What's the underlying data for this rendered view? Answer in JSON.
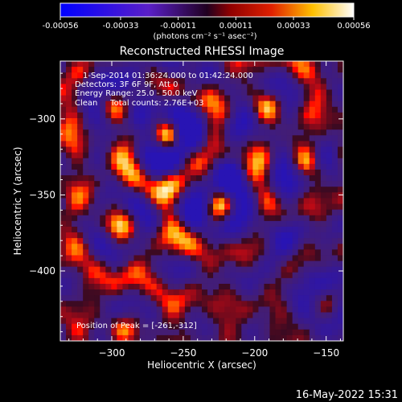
{
  "colorbar": {
    "tick_labels": [
      "-0.00056",
      "-0.00033",
      "-0.00011",
      "0.00011",
      "0.00033",
      "0.00056"
    ],
    "tick_values": [
      -0.00056,
      -0.00033,
      -0.00011,
      0.00011,
      0.00033,
      0.00056
    ],
    "unit_label": "(photons cm⁻² s⁻¹ asec⁻²)",
    "range": [
      -0.00056,
      0.00056
    ]
  },
  "annotations": {
    "time_range": "1-Sep-2014 01:36:24.000 to 01:42:24.000",
    "detectors": "Detectors: 3F 6F 9F, Att 0",
    "energy_range": "Energy Range: 25.0 - 50.0 keV",
    "algorithm": "Clean     Total counts: 2.76E+03",
    "peak_position": "Position of Peak = [-261,-312]"
  },
  "footer": {
    "timestamp": "16-May-2022 15:31"
  },
  "chart_data": {
    "type": "heatmap",
    "title": "Reconstructed RHESSI Image",
    "xlabel": "Heliocentric X (arcsec)",
    "ylabel": "Heliocentric Y (arcsec)",
    "xlim": [
      -336,
      -138
    ],
    "ylim": [
      -446,
      -262
    ],
    "xticks": [
      -300,
      -250,
      -200,
      -150
    ],
    "yticks": [
      -300,
      -350,
      -400
    ],
    "xtick_labels": [
      "−300",
      "−250",
      "−200",
      "−150"
    ],
    "ytick_labels": [
      "−300",
      "−350",
      "−400"
    ],
    "grid": false,
    "colormap": "hot (negative: blue-purple, positive: red-yellow-white)",
    "sources": [
      {
        "x": -261,
        "y": -312,
        "intensity": 1.0
      },
      {
        "x": -225,
        "y": -356,
        "intensity": 0.9
      },
      {
        "x": -300,
        "y": -290,
        "intensity": 0.6
      },
      {
        "x": -295,
        "y": -370,
        "intensity": 0.55
      },
      {
        "x": -190,
        "y": -290,
        "intensity": 0.55
      },
      {
        "x": -165,
        "y": -330,
        "intensity": 0.5
      },
      {
        "x": -150,
        "y": -420,
        "intensity": 0.45
      },
      {
        "x": -290,
        "y": -440,
        "intensity": 0.45
      }
    ],
    "peak": {
      "x": -261,
      "y": -312
    }
  }
}
